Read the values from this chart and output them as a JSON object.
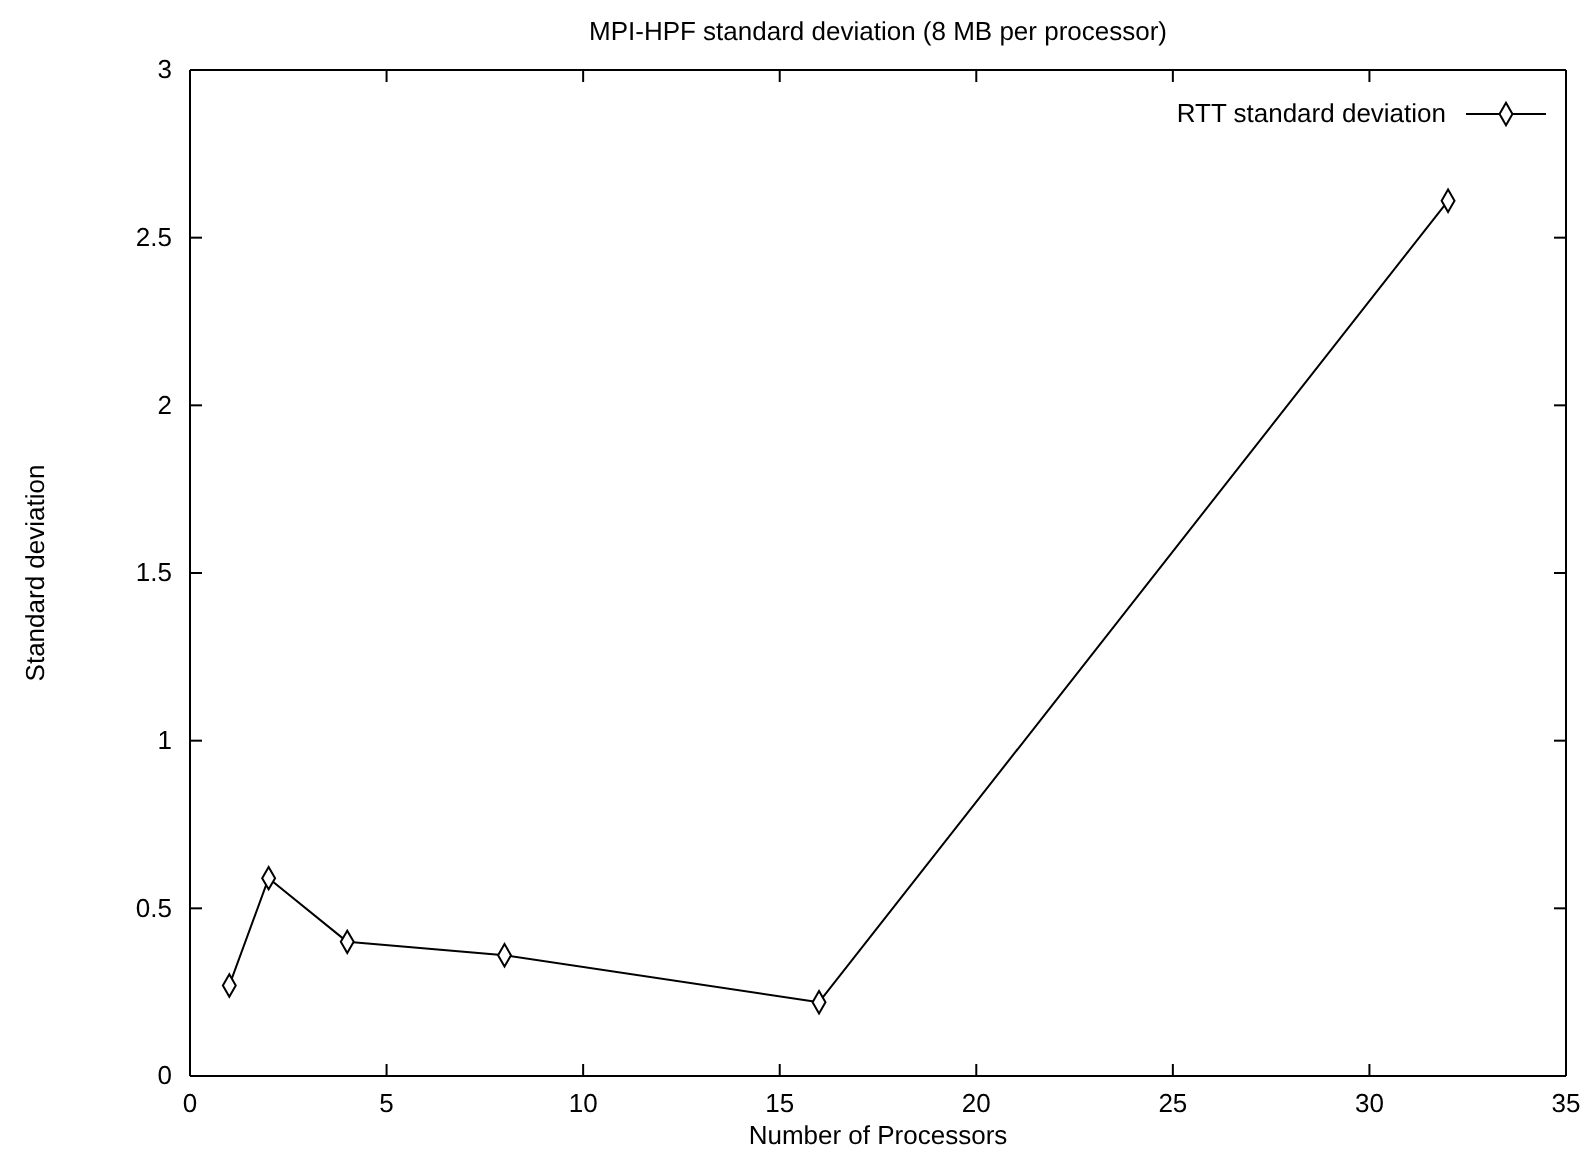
{
  "chart_data": {
    "type": "line",
    "title": "MPI-HPF standard deviation (8 MB per processor)",
    "xlabel": "Number of Processors",
    "ylabel": "Standard deviation",
    "x": [
      1,
      2,
      4,
      8,
      16,
      32
    ],
    "series": [
      {
        "name": "RTT standard deviation",
        "color": "#000000",
        "values": [
          0.27,
          0.59,
          0.4,
          0.36,
          0.22,
          2.61
        ]
      }
    ],
    "xlim": [
      0,
      35
    ],
    "xticks": [
      0,
      5,
      10,
      15,
      20,
      25,
      30,
      35
    ],
    "ylim": [
      0,
      3
    ],
    "yticks": [
      0,
      0.5,
      1,
      1.5,
      2,
      2.5,
      3
    ],
    "marker": "diamond",
    "legend": "top right",
    "grid": false
  }
}
